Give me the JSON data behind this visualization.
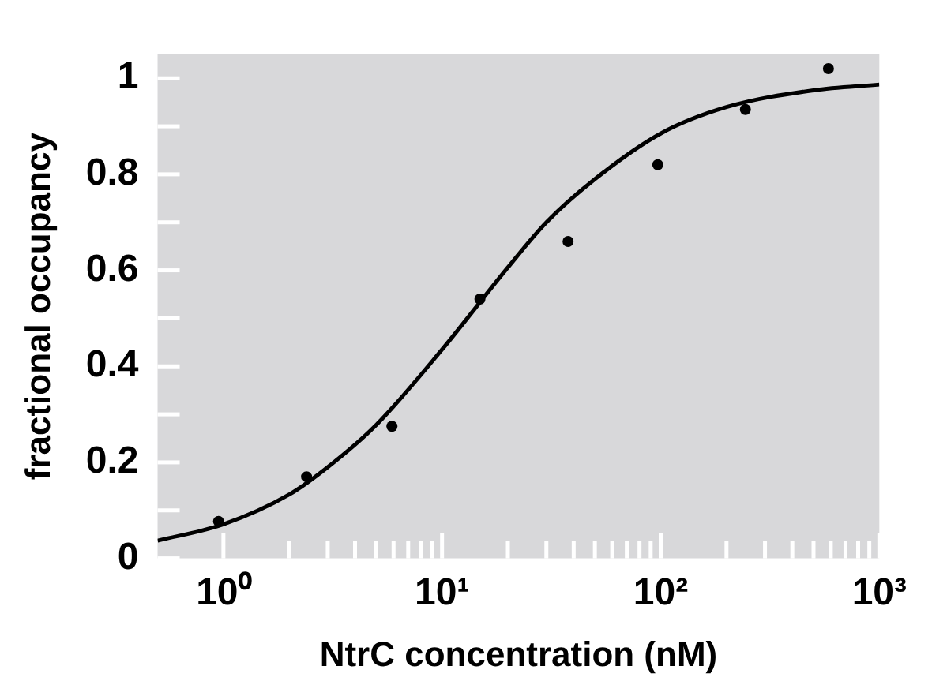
{
  "chart_data": {
    "type": "scatter",
    "xlabel": "NtrC concentration (nM)",
    "ylabel": "fractional occupancy",
    "log": "x",
    "grid": false,
    "legend": false,
    "xlim": [
      0.5,
      1000
    ],
    "ylim": [
      0,
      1.05
    ],
    "xticks": [
      {
        "value": 1,
        "label": "10⁰"
      },
      {
        "value": 2,
        "label": null
      },
      {
        "value": 3,
        "label": null
      },
      {
        "value": 4,
        "label": null
      },
      {
        "value": 5,
        "label": null
      },
      {
        "value": 6,
        "label": null
      },
      {
        "value": 7,
        "label": null
      },
      {
        "value": 8,
        "label": null
      },
      {
        "value": 9,
        "label": null
      },
      {
        "value": 10,
        "label": "10¹"
      },
      {
        "value": 20,
        "label": null
      },
      {
        "value": 30,
        "label": null
      },
      {
        "value": 40,
        "label": null
      },
      {
        "value": 50,
        "label": null
      },
      {
        "value": 60,
        "label": null
      },
      {
        "value": 70,
        "label": null
      },
      {
        "value": 80,
        "label": null
      },
      {
        "value": 90,
        "label": null
      },
      {
        "value": 100,
        "label": "10²"
      },
      {
        "value": 200,
        "label": null
      },
      {
        "value": 300,
        "label": null
      },
      {
        "value": 400,
        "label": null
      },
      {
        "value": 500,
        "label": null
      },
      {
        "value": 600,
        "label": null
      },
      {
        "value": 700,
        "label": null
      },
      {
        "value": 800,
        "label": null
      },
      {
        "value": 900,
        "label": null
      },
      {
        "value": 1000,
        "label": "10³"
      }
    ],
    "yticks": [
      0,
      {
        "value": 0.1,
        "label": null
      },
      0.2,
      {
        "value": 0.3,
        "label": null
      },
      0.4,
      {
        "value": 0.5,
        "label": null
      },
      0.6,
      {
        "value": 0.7,
        "label": null
      },
      0.8,
      {
        "value": 0.9,
        "label": null
      },
      1
    ],
    "series": [
      {
        "color": "#000000",
        "marker": "circle",
        "x": [
          0.95,
          2.4,
          5.9,
          14.9,
          37.7,
          97,
          244,
          585
        ],
        "values": [
          0.077,
          0.17,
          0.275,
          0.54,
          0.66,
          0.82,
          0.935,
          1.02
        ]
      },
      {
        "type": "line",
        "color": "#000000",
        "marker": "none",
        "line_style": "solid",
        "x": [
          0.5,
          1,
          2,
          3,
          5,
          10,
          20,
          30,
          50,
          100,
          200,
          500,
          1000
        ],
        "values": [
          0.037,
          0.071,
          0.133,
          0.19,
          0.278,
          0.435,
          0.606,
          0.7,
          0.79,
          0.885,
          0.94,
          0.975,
          0.987
        ]
      }
    ]
  }
}
